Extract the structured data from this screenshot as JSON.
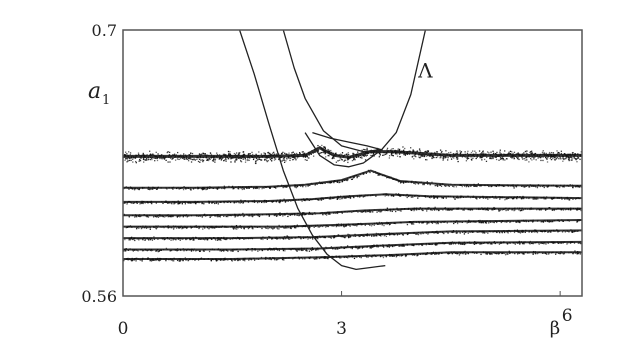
{
  "chart_data": {
    "type": "scatter",
    "title": "",
    "xlabel": "β",
    "ylabel": "a",
    "ylabel_subscript": "1",
    "xlim": [
      0,
      6.3
    ],
    "ylim": [
      0.56,
      0.7
    ],
    "x_ticks": [
      {
        "value": 0,
        "label": "0"
      },
      {
        "value": 3,
        "label": "3"
      },
      {
        "value": 6,
        "label": "6"
      }
    ],
    "y_ticks": [
      {
        "value": 0.7,
        "label": "0.7"
      },
      {
        "value": 0.56,
        "label": "0.56"
      }
    ],
    "grid": false,
    "series": [
      {
        "name": "",
        "style": "dense-band",
        "points": [
          [
            0,
            0.6335
          ],
          [
            1,
            0.6335
          ],
          [
            2,
            0.6335
          ],
          [
            2.5,
            0.634
          ],
          [
            2.7,
            0.638
          ],
          [
            2.9,
            0.634
          ],
          [
            3.1,
            0.633
          ],
          [
            3.4,
            0.636
          ],
          [
            3.7,
            0.636
          ],
          [
            4.5,
            0.634
          ],
          [
            6.3,
            0.634
          ]
        ]
      },
      {
        "name": "",
        "style": "curve",
        "points": [
          [
            0,
            0.617
          ],
          [
            1,
            0.617
          ],
          [
            2,
            0.6175
          ],
          [
            2.5,
            0.6185
          ],
          [
            3,
            0.621
          ],
          [
            3.4,
            0.626
          ],
          [
            3.8,
            0.6205
          ],
          [
            4.5,
            0.6185
          ],
          [
            6.3,
            0.618
          ]
        ]
      },
      {
        "name": "",
        "style": "curve",
        "points": [
          [
            0,
            0.6095
          ],
          [
            1,
            0.6095
          ],
          [
            2,
            0.61
          ],
          [
            2.6,
            0.611
          ],
          [
            3.1,
            0.6125
          ],
          [
            3.6,
            0.6135
          ],
          [
            4.2,
            0.6125
          ],
          [
            6.3,
            0.6115
          ]
        ]
      },
      {
        "name": "",
        "style": "curve",
        "points": [
          [
            0,
            0.6025
          ],
          [
            1,
            0.6025
          ],
          [
            2,
            0.603
          ],
          [
            2.7,
            0.6035
          ],
          [
            3.3,
            0.605
          ],
          [
            4,
            0.606
          ],
          [
            6.3,
            0.606
          ]
        ]
      },
      {
        "name": "",
        "style": "curve",
        "points": [
          [
            0,
            0.5965
          ],
          [
            1,
            0.5965
          ],
          [
            2.2,
            0.5965
          ],
          [
            3,
            0.5975
          ],
          [
            4,
            0.599
          ],
          [
            6.3,
            0.6
          ]
        ]
      },
      {
        "name": "",
        "style": "curve",
        "points": [
          [
            0,
            0.5905
          ],
          [
            1.5,
            0.5905
          ],
          [
            2.6,
            0.591
          ],
          [
            3.5,
            0.5925
          ],
          [
            4.5,
            0.594
          ],
          [
            6.3,
            0.5945
          ]
        ]
      },
      {
        "name": "",
        "style": "curve",
        "points": [
          [
            0,
            0.5845
          ],
          [
            1.5,
            0.5845
          ],
          [
            2.7,
            0.585
          ],
          [
            3.5,
            0.5865
          ],
          [
            4.5,
            0.588
          ],
          [
            6.3,
            0.5885
          ]
        ]
      },
      {
        "name": "",
        "style": "curve",
        "points": [
          [
            0,
            0.5795
          ],
          [
            1.5,
            0.5795
          ],
          [
            2.8,
            0.5805
          ],
          [
            3.6,
            0.5815
          ],
          [
            4.5,
            0.583
          ],
          [
            6.3,
            0.583
          ]
        ]
      },
      {
        "name": "",
        "style": "thin-line",
        "points": [
          [
            1.6,
            0.7
          ],
          [
            1.8,
            0.677
          ],
          [
            2.0,
            0.651
          ],
          [
            2.2,
            0.626
          ],
          [
            2.4,
            0.606
          ],
          [
            2.6,
            0.592
          ],
          [
            2.8,
            0.582
          ],
          [
            3.0,
            0.576
          ],
          [
            3.2,
            0.574
          ],
          [
            3.4,
            0.575
          ],
          [
            3.6,
            0.576
          ]
        ]
      },
      {
        "name": "Λ",
        "style": "thin-line",
        "points": [
          [
            2.2,
            0.7
          ],
          [
            2.35,
            0.68
          ],
          [
            2.5,
            0.664
          ],
          [
            2.75,
            0.647
          ],
          [
            3.0,
            0.639
          ],
          [
            3.3,
            0.636
          ],
          [
            3.55,
            0.637
          ],
          [
            3.75,
            0.646
          ],
          [
            3.95,
            0.666
          ],
          [
            4.15,
            0.7
          ]
        ]
      },
      {
        "name": "",
        "style": "thin-line",
        "points": [
          [
            2.5,
            0.646
          ],
          [
            2.7,
            0.634
          ],
          [
            2.9,
            0.629
          ],
          [
            3.1,
            0.628
          ],
          [
            3.3,
            0.63
          ],
          [
            3.55,
            0.637
          ]
        ]
      },
      {
        "name": "",
        "style": "thin-line",
        "points": [
          [
            2.6,
            0.646
          ],
          [
            2.85,
            0.643
          ],
          [
            3.1,
            0.641
          ],
          [
            3.35,
            0.639
          ],
          [
            3.55,
            0.637
          ]
        ]
      }
    ],
    "annotations": [
      {
        "text": "Λ",
        "x": 4.05,
        "y": 0.675
      }
    ]
  }
}
